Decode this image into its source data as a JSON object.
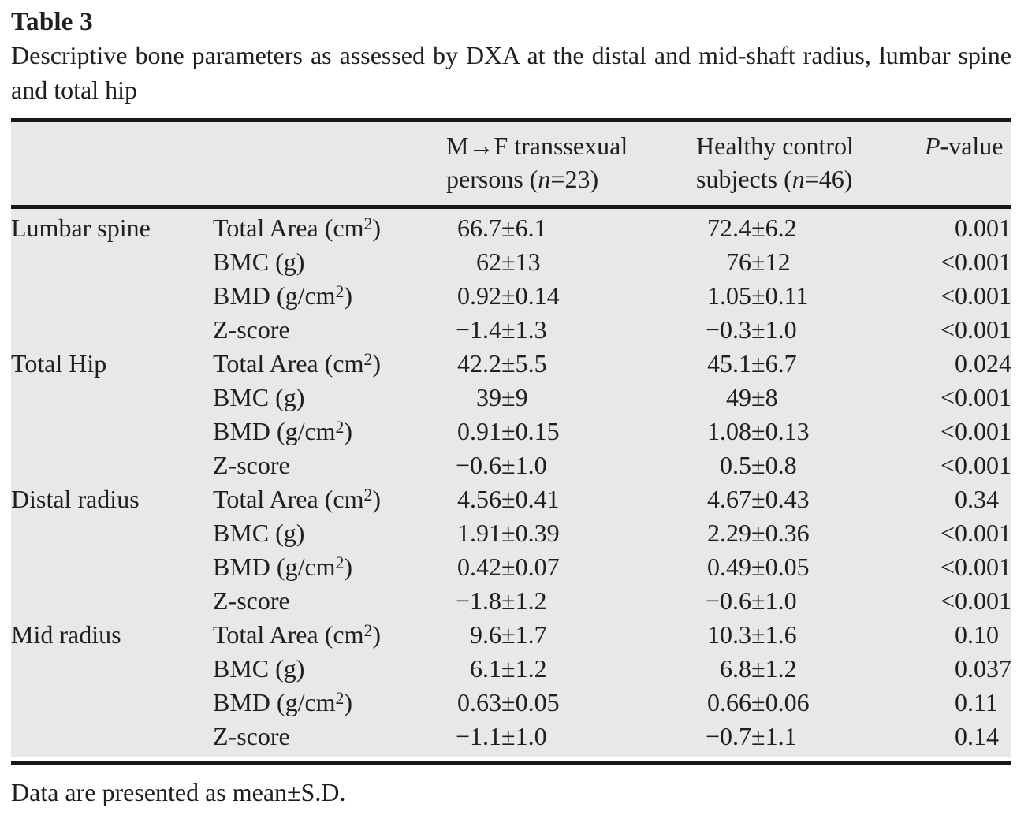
{
  "document": {
    "table_label": "Table 3",
    "caption": "Descriptive bone parameters as assessed by DXA at the distal and mid-shaft radius, lumbar spine and total hip",
    "footnote": "Data are presented as mean±S.D."
  },
  "symbols": {
    "plus_minus": "±"
  },
  "header": {
    "mtf": {
      "line1": "M→F transsexual",
      "line2_pre": "persons (",
      "line2_var": "n",
      "line2_post": "=23)"
    },
    "control": {
      "line1": "Healthy control",
      "line2_pre": "subjects (",
      "line2_var": "n",
      "line2_post": "=46)"
    },
    "pvalue": {
      "var": "P",
      "rest": "-value"
    }
  },
  "colors": {
    "table_background": "#e7e8e9",
    "rule": "#1a1718",
    "text": "#211e1f"
  },
  "groups": [
    {
      "label": "Lumbar spine",
      "rows": [
        {
          "param_pre": "Total Area (cm",
          "param_sup": "2",
          "param_post": ")",
          "mtf_mean": "66.7",
          "mtf_sd": "6.1",
          "ctrl_mean": "72.4",
          "ctrl_sd": "6.2",
          "p": "0.001"
        },
        {
          "param_pre": "BMC (g)",
          "param_sup": "",
          "param_post": "",
          "mtf_mean": "62",
          "mtf_sd": "13",
          "ctrl_mean": "76",
          "ctrl_sd": "12",
          "p": "<0.001"
        },
        {
          "param_pre": "BMD (g/cm",
          "param_sup": "2",
          "param_post": ")",
          "mtf_mean": "0.92",
          "mtf_sd": "0.14",
          "ctrl_mean": "1.05",
          "ctrl_sd": "0.11",
          "p": "<0.001"
        },
        {
          "param_pre": "Z-score",
          "param_sup": "",
          "param_post": "",
          "mtf_mean": "−1.4",
          "mtf_sd": "1.3",
          "ctrl_mean": "−0.3",
          "ctrl_sd": "1.0",
          "p": "<0.001"
        }
      ]
    },
    {
      "label": "Total Hip",
      "rows": [
        {
          "param_pre": "Total Area (cm",
          "param_sup": "2",
          "param_post": ")",
          "mtf_mean": "42.2",
          "mtf_sd": "5.5",
          "ctrl_mean": "45.1",
          "ctrl_sd": "6.7",
          "p": "0.024"
        },
        {
          "param_pre": "BMC (g)",
          "param_sup": "",
          "param_post": "",
          "mtf_mean": "39",
          "mtf_sd": "9",
          "ctrl_mean": "49",
          "ctrl_sd": "8",
          "p": "<0.001"
        },
        {
          "param_pre": "BMD (g/cm",
          "param_sup": "2",
          "param_post": ")",
          "mtf_mean": "0.91",
          "mtf_sd": "0.15",
          "ctrl_mean": "1.08",
          "ctrl_sd": "0.13",
          "p": "<0.001"
        },
        {
          "param_pre": "Z-score",
          "param_sup": "",
          "param_post": "",
          "mtf_mean": "−0.6",
          "mtf_sd": "1.0",
          "ctrl_mean": "0.5",
          "ctrl_sd": "0.8",
          "p": "<0.001"
        }
      ]
    },
    {
      "label": "Distal radius",
      "rows": [
        {
          "param_pre": "Total Area (cm",
          "param_sup": "2",
          "param_post": ")",
          "mtf_mean": "4.56",
          "mtf_sd": "0.41",
          "ctrl_mean": "4.67",
          "ctrl_sd": "0.43",
          "p": "0.34"
        },
        {
          "param_pre": "BMC (g)",
          "param_sup": "",
          "param_post": "",
          "mtf_mean": "1.91",
          "mtf_sd": "0.39",
          "ctrl_mean": "2.29",
          "ctrl_sd": "0.36",
          "p": "<0.001"
        },
        {
          "param_pre": "BMD (g/cm",
          "param_sup": "2",
          "param_post": ")",
          "mtf_mean": "0.42",
          "mtf_sd": "0.07",
          "ctrl_mean": "0.49",
          "ctrl_sd": "0.05",
          "p": "<0.001"
        },
        {
          "param_pre": "Z-score",
          "param_sup": "",
          "param_post": "",
          "mtf_mean": "−1.8",
          "mtf_sd": "1.2",
          "ctrl_mean": "−0.6",
          "ctrl_sd": "1.0",
          "p": "<0.001"
        }
      ]
    },
    {
      "label": "Mid radius",
      "rows": [
        {
          "param_pre": "Total Area (cm",
          "param_sup": "2",
          "param_post": ")",
          "mtf_mean": "9.6",
          "mtf_sd": "1.7",
          "ctrl_mean": "10.3",
          "ctrl_sd": "1.6",
          "p": "0.10"
        },
        {
          "param_pre": "BMC (g)",
          "param_sup": "",
          "param_post": "",
          "mtf_mean": "6.1",
          "mtf_sd": "1.2",
          "ctrl_mean": "6.8",
          "ctrl_sd": "1.2",
          "p": "0.037"
        },
        {
          "param_pre": "BMD (g/cm",
          "param_sup": "2",
          "param_post": ")",
          "mtf_mean": "0.63",
          "mtf_sd": "0.05",
          "ctrl_mean": "0.66",
          "ctrl_sd": "0.06",
          "p": "0.11"
        },
        {
          "param_pre": "Z-score",
          "param_sup": "",
          "param_post": "",
          "mtf_mean": "−1.1",
          "mtf_sd": "1.0",
          "ctrl_mean": "−0.7",
          "ctrl_sd": "1.1",
          "p": "0.14"
        }
      ]
    }
  ]
}
